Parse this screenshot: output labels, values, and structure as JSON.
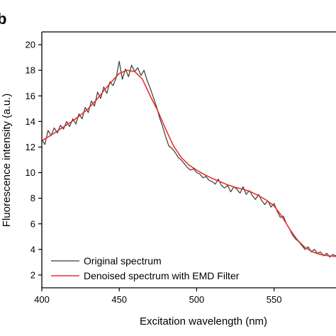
{
  "panel_label": "b",
  "chart_data": {
    "type": "line",
    "title": "",
    "xlabel": "Excitation wavelength (nm)",
    "ylabel": "Fluorescence intensity (a.u.)",
    "xlim": [
      400,
      590
    ],
    "ylim": [
      1,
      21
    ],
    "xticks": [
      400,
      450,
      500,
      550
    ],
    "yticks": [
      2,
      4,
      6,
      8,
      10,
      12,
      14,
      16,
      18,
      20
    ],
    "legend_position": "bottom-left",
    "series": [
      {
        "name": "Original spectrum",
        "color": "#3a3a3a",
        "x": [
          400,
          402,
          404,
          406,
          408,
          410,
          412,
          414,
          416,
          418,
          420,
          422,
          424,
          426,
          428,
          430,
          432,
          434,
          436,
          438,
          440,
          442,
          444,
          446,
          448,
          450,
          452,
          454,
          456,
          458,
          460,
          462,
          464,
          466,
          468,
          470,
          472,
          474,
          476,
          478,
          480,
          482,
          484,
          486,
          488,
          490,
          492,
          494,
          496,
          498,
          500,
          502,
          504,
          506,
          508,
          510,
          512,
          514,
          516,
          518,
          520,
          522,
          524,
          526,
          528,
          530,
          532,
          534,
          536,
          538,
          540,
          542,
          544,
          546,
          548,
          550,
          552,
          554,
          556,
          558,
          560,
          562,
          564,
          566,
          568,
          570,
          572,
          574,
          576,
          578,
          580,
          582,
          584,
          586,
          588,
          590
        ],
        "y": [
          12.6,
          12.2,
          13.3,
          12.9,
          13.5,
          13.1,
          13.7,
          13.4,
          14.0,
          13.6,
          14.2,
          13.8,
          14.6,
          14.2,
          15.1,
          14.7,
          15.6,
          15.2,
          16.3,
          15.8,
          16.7,
          16.2,
          17.1,
          16.8,
          17.4,
          18.7,
          17.3,
          18.1,
          17.5,
          18.4,
          17.9,
          18.2,
          17.6,
          18.0,
          17.2,
          16.6,
          15.9,
          15.2,
          14.3,
          13.6,
          12.8,
          12.1,
          11.9,
          11.6,
          11.2,
          11.0,
          10.7,
          10.4,
          10.2,
          10.3,
          10.0,
          9.9,
          9.6,
          9.7,
          9.4,
          9.3,
          9.1,
          9.5,
          9.0,
          8.8,
          9.0,
          8.5,
          8.9,
          8.7,
          8.4,
          8.9,
          8.3,
          8.6,
          8.2,
          7.9,
          8.3,
          7.8,
          7.5,
          7.8,
          7.3,
          7.6,
          7.0,
          6.5,
          6.6,
          6.0,
          5.6,
          5.1,
          4.8,
          4.6,
          4.3,
          4.0,
          4.2,
          3.8,
          4.0,
          3.7,
          3.8,
          3.5,
          3.7,
          3.4,
          3.6,
          3.5
        ]
      },
      {
        "name": "Denoised spectrum with EMD Filter",
        "color": "#e8302a",
        "x": [
          400,
          405,
          410,
          415,
          420,
          425,
          430,
          435,
          440,
          445,
          450,
          455,
          460,
          465,
          470,
          475,
          480,
          485,
          490,
          495,
          500,
          505,
          510,
          515,
          520,
          525,
          530,
          535,
          540,
          545,
          550,
          555,
          560,
          565,
          570,
          575,
          580,
          585,
          590
        ],
        "y": [
          12.5,
          12.85,
          13.25,
          13.65,
          14.05,
          14.5,
          15.0,
          15.65,
          16.4,
          17.1,
          17.75,
          18.0,
          17.9,
          17.3,
          16.0,
          14.8,
          13.4,
          12.1,
          11.2,
          10.6,
          10.2,
          9.85,
          9.55,
          9.3,
          9.05,
          8.85,
          8.7,
          8.5,
          8.2,
          7.85,
          7.4,
          6.6,
          5.6,
          4.75,
          4.15,
          3.8,
          3.6,
          3.5,
          3.45
        ]
      }
    ]
  }
}
